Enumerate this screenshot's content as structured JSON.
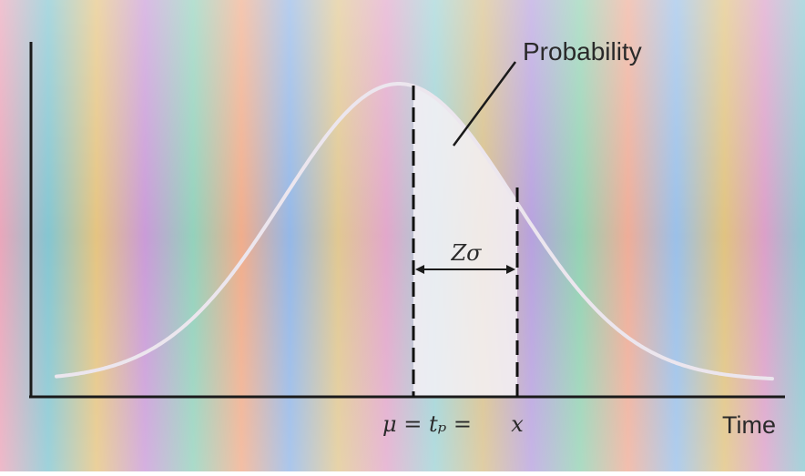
{
  "diagram": {
    "title": "",
    "labels": {
      "probability": "Probability",
      "time_axis": "Time",
      "mean": "μ = tₚ =",
      "x_point": "x",
      "z_sigma": "Zσ"
    },
    "colors": {
      "curve": "#e9e2ea",
      "axes": "#1a1a1a",
      "dashed_lines": "#111111",
      "shaded_region": "#f4f1f6",
      "text": "#2a2a2a"
    }
  }
}
